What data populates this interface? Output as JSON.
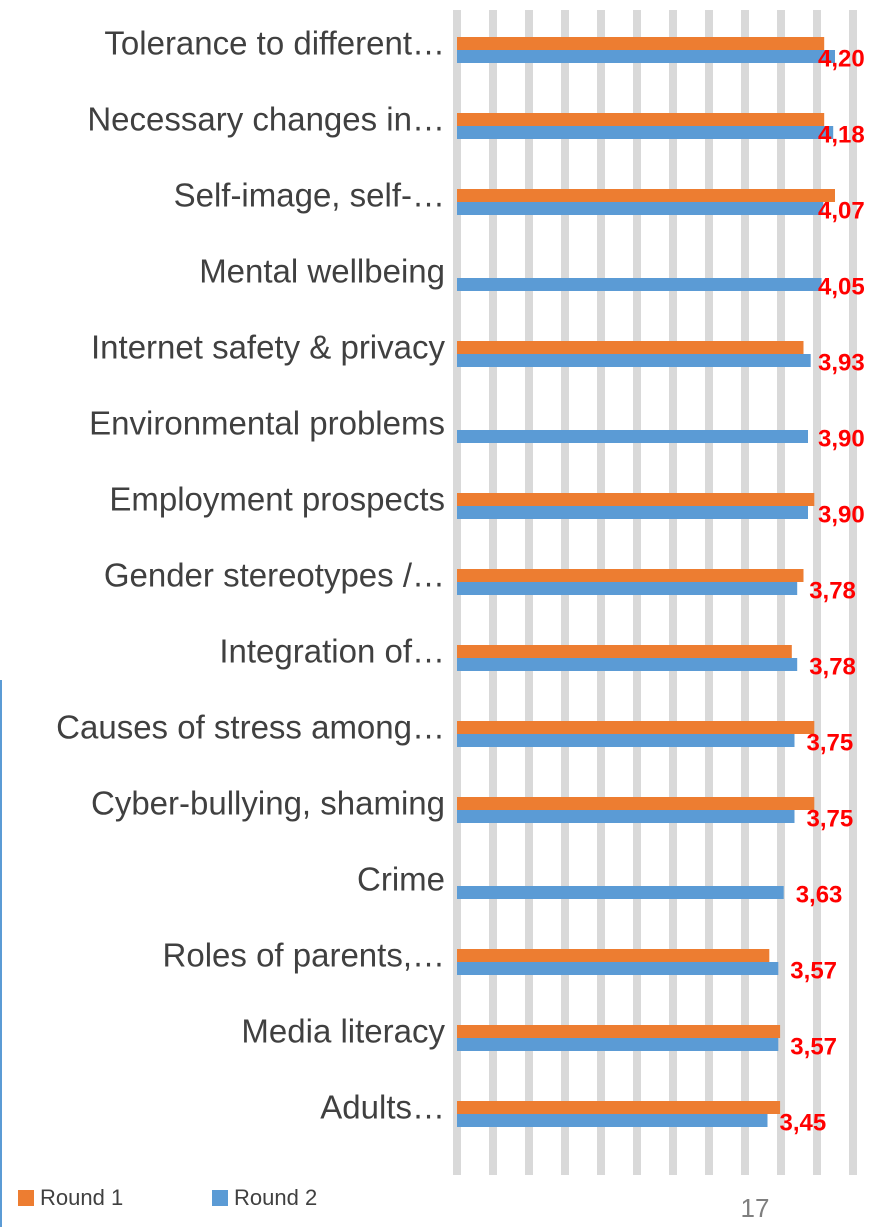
{
  "chart_data": {
    "type": "hbar",
    "categories": [
      "Tolerance to different…",
      "Necessary changes in…",
      "Self-image, self-…",
      "Mental wellbeing",
      "Internet safety & privacy",
      "Environmental problems",
      "Employment prospects",
      "Gender stereotypes /…",
      "Integration of…",
      "Causes of stress among…",
      "Cyber-bullying, shaming",
      "Crime",
      "Roles of parents,…",
      "Media literacy",
      "Adults…"
    ],
    "series": [
      {
        "name": "Round 1",
        "color": "#ed7d31",
        "values": [
          4.08,
          4.08,
          4.2,
          null,
          3.85,
          null,
          3.97,
          3.85,
          3.72,
          3.97,
          3.97,
          null,
          3.47,
          3.59,
          3.59
        ]
      },
      {
        "name": "Round 2",
        "color": "#5b9bd5",
        "values": [
          4.2,
          4.18,
          4.07,
          4.05,
          3.93,
          3.9,
          3.9,
          3.78,
          3.78,
          3.75,
          3.75,
          3.63,
          3.57,
          3.57,
          3.45
        ],
        "value_labels": [
          "4,20",
          "4,18",
          "4,07",
          "4,05",
          "3,93",
          "3,90",
          "3,90",
          "3,78",
          "3,78",
          "3,75",
          "3,75",
          "3,63",
          "3,57",
          "3,57",
          "3,45"
        ]
      }
    ],
    "xlim": [
      0,
      4.5
    ],
    "xticks": [
      0,
      0.4,
      0.8,
      1.2,
      1.6,
      2,
      2.4,
      2.8,
      3.2,
      3.6,
      4,
      4.4
    ],
    "grid": true,
    "legend": "bottom-left"
  },
  "page_number": "17"
}
